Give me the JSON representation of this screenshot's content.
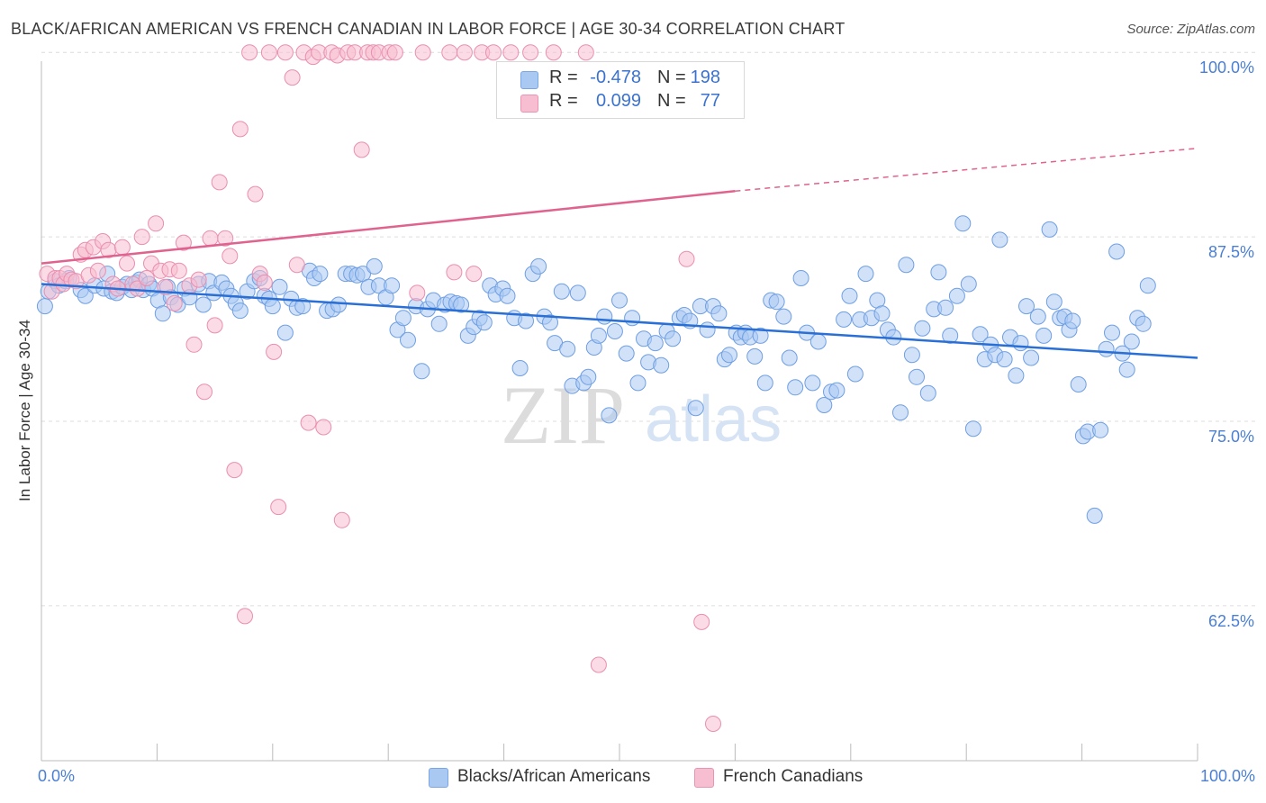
{
  "title": "BLACK/AFRICAN AMERICAN VS FRENCH CANADIAN IN LABOR FORCE | AGE 30-34 CORRELATION CHART",
  "source": "Source: ZipAtlas.com",
  "watermark": "ZIPatlas",
  "legend": {
    "rows": [
      {
        "r_label": "R =",
        "r_value": "-0.478",
        "n_label": "N =",
        "n_value": "198",
        "color": "#a9c8f2",
        "border": "#7aa6e6"
      },
      {
        "r_label": "R =",
        "r_value": "0.099",
        "n_label": "N =",
        "n_value": "77",
        "color": "#f7bdd0",
        "border": "#ec93b2"
      }
    ]
  },
  "bottom_legend": [
    "Blacks/African Americans",
    "French Canadians"
  ],
  "chart_data": {
    "type": "scatter",
    "title": "BLACK/AFRICAN AMERICAN VS FRENCH CANADIAN IN LABOR FORCE | AGE 30-34 CORRELATION CHART",
    "ylabel": "In Labor Force | Age 30-34",
    "xlabel": "",
    "x_tick_labels": [
      "0.0%",
      "100.0%"
    ],
    "y_tick_labels": [
      "100.0%",
      "87.5%",
      "75.0%",
      "62.5%"
    ],
    "y_ticks": [
      100.0,
      87.5,
      75.0,
      62.5
    ],
    "xlim": [
      0,
      100
    ],
    "ylim": [
      52.0,
      100.5
    ],
    "grid": "horizontal dashed",
    "legend_position": "top-center",
    "series": [
      {
        "name": "Blacks/African Americans",
        "color": "#a9c8f2",
        "edge": "#6f9fe3",
        "trend": {
          "x0": 0,
          "y0": 84.3,
          "x1": 100,
          "y1": 79.3,
          "color": "#2a6fd6"
        },
        "points": [
          [
            0.3,
            82.8
          ],
          [
            0.6,
            83.8
          ],
          [
            1.2,
            84.5
          ],
          [
            1.5,
            84.2
          ],
          [
            2.1,
            84.5
          ],
          [
            2.4,
            84.7
          ],
          [
            3.4,
            83.9
          ],
          [
            3.8,
            83.5
          ],
          [
            4.6,
            84.2
          ],
          [
            5.4,
            84.0
          ],
          [
            5.7,
            85.0
          ],
          [
            6.1,
            83.8
          ],
          [
            6.5,
            83.7
          ],
          [
            7.0,
            84.1
          ],
          [
            7.4,
            84.3
          ],
          [
            7.8,
            83.9
          ],
          [
            8.2,
            84.4
          ],
          [
            8.5,
            84.6
          ],
          [
            8.8,
            83.9
          ],
          [
            9.3,
            84.3
          ],
          [
            9.6,
            84.0
          ],
          [
            10.1,
            83.2
          ],
          [
            10.5,
            82.3
          ],
          [
            10.9,
            84.1
          ],
          [
            11.2,
            83.4
          ],
          [
            11.8,
            82.9
          ],
          [
            12.4,
            84.0
          ],
          [
            12.8,
            83.4
          ],
          [
            13.6,
            84.3
          ],
          [
            14.0,
            82.9
          ],
          [
            14.5,
            84.5
          ],
          [
            14.9,
            83.7
          ],
          [
            15.6,
            84.4
          ],
          [
            16.0,
            84.0
          ],
          [
            16.4,
            83.5
          ],
          [
            16.8,
            83.0
          ],
          [
            17.2,
            82.5
          ],
          [
            17.8,
            83.8
          ],
          [
            18.4,
            84.5
          ],
          [
            18.9,
            84.7
          ],
          [
            19.3,
            83.5
          ],
          [
            19.7,
            83.3
          ],
          [
            20.0,
            82.8
          ],
          [
            20.6,
            84.1
          ],
          [
            21.1,
            81.0
          ],
          [
            21.6,
            83.3
          ],
          [
            22.1,
            82.7
          ],
          [
            22.6,
            82.8
          ],
          [
            23.2,
            85.2
          ],
          [
            23.6,
            84.7
          ],
          [
            24.1,
            85.0
          ],
          [
            24.7,
            82.5
          ],
          [
            25.2,
            82.6
          ],
          [
            25.7,
            82.9
          ],
          [
            26.3,
            85.0
          ],
          [
            26.8,
            85.0
          ],
          [
            27.3,
            84.9
          ],
          [
            27.8,
            85.0
          ],
          [
            28.3,
            84.1
          ],
          [
            28.8,
            85.5
          ],
          [
            29.2,
            84.2
          ],
          [
            29.8,
            83.4
          ],
          [
            30.3,
            84.2
          ],
          [
            30.8,
            81.2
          ],
          [
            31.3,
            82.0
          ],
          [
            31.7,
            80.5
          ],
          [
            32.4,
            82.8
          ],
          [
            32.9,
            78.4
          ],
          [
            33.4,
            82.6
          ],
          [
            33.9,
            83.2
          ],
          [
            34.4,
            81.6
          ],
          [
            34.9,
            82.9
          ],
          [
            35.4,
            83.1
          ],
          [
            35.9,
            83.0
          ],
          [
            36.3,
            82.9
          ],
          [
            36.9,
            80.8
          ],
          [
            37.4,
            81.4
          ],
          [
            37.9,
            82.0
          ],
          [
            38.3,
            81.7
          ],
          [
            38.8,
            84.2
          ],
          [
            39.3,
            83.6
          ],
          [
            39.9,
            84.0
          ],
          [
            40.3,
            83.5
          ],
          [
            40.9,
            82.0
          ],
          [
            41.4,
            78.6
          ],
          [
            41.9,
            81.8
          ],
          [
            42.5,
            85.0
          ],
          [
            43.0,
            85.5
          ],
          [
            43.5,
            82.1
          ],
          [
            44.0,
            81.7
          ],
          [
            44.4,
            80.3
          ],
          [
            45.0,
            83.8
          ],
          [
            45.5,
            79.9
          ],
          [
            45.9,
            77.4
          ],
          [
            46.4,
            83.7
          ],
          [
            46.9,
            77.6
          ],
          [
            47.3,
            78.0
          ],
          [
            47.8,
            80.0
          ],
          [
            48.2,
            80.8
          ],
          [
            48.7,
            82.1
          ],
          [
            49.1,
            75.4
          ],
          [
            49.6,
            81.1
          ],
          [
            50.0,
            83.2
          ],
          [
            50.6,
            79.6
          ],
          [
            51.1,
            82.0
          ],
          [
            51.6,
            77.6
          ],
          [
            52.1,
            80.6
          ],
          [
            52.5,
            79.0
          ],
          [
            53.1,
            80.3
          ],
          [
            53.6,
            78.8
          ],
          [
            54.1,
            81.1
          ],
          [
            54.6,
            80.6
          ],
          [
            55.2,
            82.0
          ],
          [
            55.6,
            82.2
          ],
          [
            56.1,
            81.8
          ],
          [
            56.6,
            75.9
          ],
          [
            57.0,
            82.8
          ],
          [
            57.6,
            81.2
          ],
          [
            58.1,
            82.8
          ],
          [
            58.6,
            82.3
          ],
          [
            59.1,
            79.2
          ],
          [
            59.5,
            79.5
          ],
          [
            60.1,
            81.0
          ],
          [
            60.5,
            80.7
          ],
          [
            60.9,
            81.0
          ],
          [
            61.3,
            80.7
          ],
          [
            61.7,
            79.4
          ],
          [
            62.2,
            80.8
          ],
          [
            62.6,
            77.6
          ],
          [
            63.1,
            83.2
          ],
          [
            63.6,
            83.1
          ],
          [
            64.2,
            82.1
          ],
          [
            64.7,
            79.3
          ],
          [
            65.2,
            77.3
          ],
          [
            65.7,
            84.7
          ],
          [
            66.2,
            81.0
          ],
          [
            66.7,
            77.6
          ],
          [
            67.2,
            80.4
          ],
          [
            67.7,
            76.1
          ],
          [
            68.3,
            77.0
          ],
          [
            68.8,
            77.1
          ],
          [
            69.4,
            81.9
          ],
          [
            69.9,
            83.5
          ],
          [
            70.4,
            78.2
          ],
          [
            70.8,
            81.9
          ],
          [
            71.3,
            85.0
          ],
          [
            71.8,
            82.0
          ],
          [
            72.3,
            83.2
          ],
          [
            72.7,
            82.3
          ],
          [
            73.2,
            81.2
          ],
          [
            73.7,
            80.7
          ],
          [
            74.3,
            75.6
          ],
          [
            74.8,
            85.6
          ],
          [
            75.3,
            79.5
          ],
          [
            75.7,
            78.0
          ],
          [
            76.2,
            81.3
          ],
          [
            76.7,
            76.9
          ],
          [
            77.2,
            82.6
          ],
          [
            77.6,
            85.1
          ],
          [
            78.2,
            82.7
          ],
          [
            78.6,
            80.8
          ],
          [
            79.2,
            83.5
          ],
          [
            79.7,
            88.4
          ],
          [
            80.2,
            84.3
          ],
          [
            80.6,
            74.5
          ],
          [
            81.2,
            80.9
          ],
          [
            81.6,
            79.2
          ],
          [
            82.1,
            80.2
          ],
          [
            82.5,
            79.5
          ],
          [
            82.9,
            87.3
          ],
          [
            83.3,
            79.2
          ],
          [
            83.8,
            80.7
          ],
          [
            84.3,
            78.1
          ],
          [
            84.7,
            80.3
          ],
          [
            85.2,
            82.8
          ],
          [
            85.6,
            79.3
          ],
          [
            86.2,
            82.1
          ],
          [
            86.7,
            80.8
          ],
          [
            87.2,
            88.0
          ],
          [
            87.6,
            83.1
          ],
          [
            88.1,
            82.0
          ],
          [
            88.5,
            82.1
          ],
          [
            88.9,
            81.2
          ],
          [
            89.2,
            81.8
          ],
          [
            89.7,
            77.5
          ],
          [
            90.1,
            74.0
          ],
          [
            90.5,
            74.3
          ],
          [
            91.1,
            68.6
          ],
          [
            91.6,
            74.4
          ],
          [
            92.1,
            79.9
          ],
          [
            92.6,
            81.0
          ],
          [
            93.0,
            86.5
          ],
          [
            93.5,
            79.6
          ],
          [
            93.9,
            78.5
          ],
          [
            94.3,
            80.4
          ],
          [
            94.8,
            82.0
          ],
          [
            95.3,
            81.6
          ],
          [
            95.7,
            84.2
          ]
        ]
      },
      {
        "name": "French Canadians",
        "color": "#f7bdd0",
        "edge": "#e98fb0",
        "trend": {
          "x0": 0,
          "y0": 85.7,
          "x1": 60,
          "y1": 90.6,
          "color": "#e0628f",
          "dash_to_x": 100,
          "dash_to_y": 93.5
        },
        "points": [
          [
            0.5,
            85.0
          ],
          [
            0.9,
            83.8
          ],
          [
            1.2,
            84.7
          ],
          [
            1.6,
            84.7
          ],
          [
            1.9,
            84.3
          ],
          [
            2.2,
            85.0
          ],
          [
            2.6,
            84.6
          ],
          [
            3.0,
            84.5
          ],
          [
            3.4,
            86.3
          ],
          [
            3.8,
            86.6
          ],
          [
            4.1,
            84.9
          ],
          [
            4.5,
            86.8
          ],
          [
            4.9,
            85.2
          ],
          [
            5.3,
            87.2
          ],
          [
            5.8,
            86.6
          ],
          [
            6.2,
            84.3
          ],
          [
            6.6,
            84.0
          ],
          [
            7.0,
            86.8
          ],
          [
            7.4,
            85.7
          ],
          [
            7.9,
            84.3
          ],
          [
            8.3,
            84.0
          ],
          [
            8.7,
            87.5
          ],
          [
            9.1,
            84.7
          ],
          [
            9.5,
            85.7
          ],
          [
            9.9,
            88.4
          ],
          [
            10.3,
            85.2
          ],
          [
            10.7,
            84.1
          ],
          [
            11.1,
            85.3
          ],
          [
            11.5,
            83.0
          ],
          [
            11.9,
            85.2
          ],
          [
            12.3,
            87.1
          ],
          [
            12.8,
            84.2
          ],
          [
            13.2,
            80.2
          ],
          [
            13.6,
            84.6
          ],
          [
            14.1,
            77.0
          ],
          [
            14.6,
            87.4
          ],
          [
            15.0,
            81.5
          ],
          [
            15.4,
            91.2
          ],
          [
            15.9,
            87.4
          ],
          [
            16.3,
            86.2
          ],
          [
            16.7,
            71.7
          ],
          [
            17.2,
            94.8
          ],
          [
            17.6,
            61.8
          ],
          [
            18.0,
            100.0
          ],
          [
            18.5,
            90.4
          ],
          [
            18.9,
            85.0
          ],
          [
            19.3,
            84.4
          ],
          [
            19.7,
            100.0
          ],
          [
            20.1,
            79.7
          ],
          [
            20.5,
            69.2
          ],
          [
            21.1,
            100.0
          ],
          [
            21.7,
            98.3
          ],
          [
            22.1,
            85.6
          ],
          [
            22.7,
            100.0
          ],
          [
            23.1,
            74.9
          ],
          [
            23.5,
            99.7
          ],
          [
            24.0,
            100.0
          ],
          [
            24.4,
            74.6
          ],
          [
            25.1,
            100.0
          ],
          [
            25.6,
            99.8
          ],
          [
            26.0,
            68.3
          ],
          [
            26.5,
            100.0
          ],
          [
            27.1,
            100.0
          ],
          [
            27.7,
            93.4
          ],
          [
            28.2,
            100.0
          ],
          [
            28.7,
            100.0
          ],
          [
            29.2,
            100.0
          ],
          [
            30.1,
            100.0
          ],
          [
            30.6,
            100.0
          ],
          [
            32.5,
            83.7
          ],
          [
            33.0,
            100.0
          ],
          [
            35.3,
            100.0
          ],
          [
            35.7,
            85.1
          ],
          [
            36.6,
            100.0
          ],
          [
            37.4,
            85.0
          ],
          [
            38.1,
            100.0
          ],
          [
            39.1,
            100.0
          ]
        ],
        "extra_points": [
          [
            40.6,
            100.0
          ],
          [
            42.3,
            100.0
          ],
          [
            44.3,
            100.0
          ],
          [
            47.1,
            100.0
          ],
          [
            48.2,
            58.5
          ],
          [
            55.8,
            86.0
          ],
          [
            57.1,
            61.4
          ],
          [
            58.1,
            54.5
          ]
        ]
      }
    ]
  }
}
